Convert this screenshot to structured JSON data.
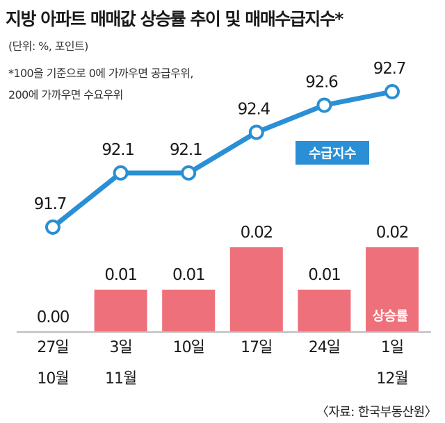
{
  "chart_data": {
    "type": "bar+line",
    "title": "지방 아파트 매매값 상승률 추이 및 매매수급지수*",
    "unit_note": "(단위: %, 포인트)",
    "footnote_lines": [
      "*100을 기준으로 0에 가까우면 공급우위,",
      "200에 가까우면 수요우위"
    ],
    "categories": [
      {
        "day": "27일",
        "month": "10월"
      },
      {
        "day": "3일",
        "month": "11월"
      },
      {
        "day": "10일",
        "month": ""
      },
      {
        "day": "17일",
        "month": ""
      },
      {
        "day": "24일",
        "month": ""
      },
      {
        "day": "1일",
        "month": "12월"
      }
    ],
    "line_series": {
      "name": "수급지수",
      "values": [
        91.7,
        92.1,
        92.1,
        92.4,
        92.6,
        92.7
      ],
      "labels": [
        "91.7",
        "92.1",
        "92.1",
        "92.4",
        "92.6",
        "92.7"
      ],
      "color": "#2a8fd4"
    },
    "bar_series": {
      "name": "상승률",
      "values": [
        0.0,
        0.01,
        0.01,
        0.02,
        0.01,
        0.02
      ],
      "labels": [
        "0.00",
        "0.01",
        "0.01",
        "0.02",
        "0.01",
        "0.02"
      ],
      "color": "#ee707a"
    },
    "source": "〈자료: 한국부동산원〉"
  }
}
